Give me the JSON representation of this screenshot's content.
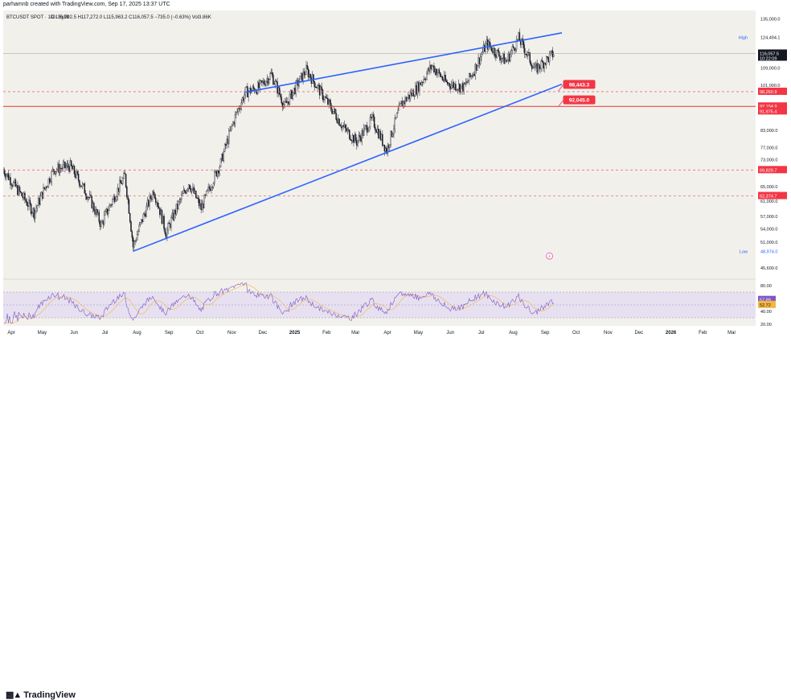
{
  "credit": "parhamnb created with TradingView.com, Sep 17, 2025 13:37 UTC",
  "brand": "TradingView",
  "legend": {
    "symbol": "BTCUSDT SPOT · 1D · Bybit",
    "ohlc": "O116,792.5 H117,272.0 L115,963.2 C116,057.5 −735.0 (−0.63%) Vol3.86K"
  },
  "colors": {
    "background": "#f2f0eb",
    "wedge_line": "#2962ff",
    "support_line": "#e53935",
    "dashed_line": "#e57373",
    "label_red": "#f23645",
    "rsi_band": "#e6e0f0",
    "rsi_line": "#7e57c2",
    "rsi_ma": "#f5b642",
    "candle": "#131722"
  },
  "chart_data": [
    {
      "type": "candlestick",
      "scale": "log",
      "ylim": [
        44000,
        140000
      ],
      "x_tick_labels": [
        "Apr",
        "May",
        "Jun",
        "Jul",
        "Aug",
        "Sep",
        "Oct",
        "Nov",
        "Dec",
        "2025",
        "Feb",
        "Mar",
        "Apr",
        "May",
        "Jun",
        "Jul",
        "Aug",
        "Sep",
        "Oct",
        "Nov",
        "Dec",
        "2026",
        "Feb",
        "Mar"
      ],
      "y_tick_labels": [
        "135,000.0",
        "109,000.0",
        "101,000.0",
        "83,000.0",
        "77,000.0",
        "73,000.0",
        "65,000.0",
        "61,000.0",
        "57,000.0",
        "54,000.0",
        "51,000.0",
        "45,600.0"
      ],
      "price_path": [
        [
          "2024-04-01",
          70000
        ],
        [
          "2024-04-15",
          64000
        ],
        [
          "2024-05-01",
          58000
        ],
        [
          "2024-05-20",
          70000
        ],
        [
          "2024-06-05",
          71000
        ],
        [
          "2024-06-25",
          61000
        ],
        [
          "2024-07-05",
          55000
        ],
        [
          "2024-07-28",
          68000
        ],
        [
          "2024-08-05",
          50000
        ],
        [
          "2024-08-25",
          64000
        ],
        [
          "2024-09-06",
          53000
        ],
        [
          "2024-09-28",
          66000
        ],
        [
          "2024-10-10",
          59000
        ],
        [
          "2024-10-29",
          72000
        ],
        [
          "2024-11-12",
          88000
        ],
        [
          "2024-11-22",
          98000
        ],
        [
          "2024-12-05",
          100000
        ],
        [
          "2024-12-17",
          106000
        ],
        [
          "2024-12-30",
          92000
        ],
        [
          "2025-01-20",
          108000
        ],
        [
          "2025-02-03",
          98000
        ],
        [
          "2025-02-25",
          84000
        ],
        [
          "2025-03-10",
          79000
        ],
        [
          "2025-03-25",
          87000
        ],
        [
          "2025-04-08",
          76000
        ],
        [
          "2025-04-22",
          93000
        ],
        [
          "2025-05-08",
          100000
        ],
        [
          "2025-05-22",
          110000
        ],
        [
          "2025-06-05",
          102000
        ],
        [
          "2025-06-22",
          100000
        ],
        [
          "2025-07-01",
          107000
        ],
        [
          "2025-07-14",
          121000
        ],
        [
          "2025-08-02",
          112000
        ],
        [
          "2025-08-14",
          124000
        ],
        [
          "2025-08-30",
          108000
        ],
        [
          "2025-09-17",
          116057.5
        ]
      ],
      "trendlines": [
        {
          "name": "wedge-upper",
          "from": [
            "2024-11-22",
            98000
          ],
          "to": [
            "2025-09-25",
            127000
          ]
        },
        {
          "name": "wedge-lower",
          "from": [
            "2024-08-05",
            49000
          ],
          "to": [
            "2025-09-25",
            101500
          ]
        }
      ],
      "horizontal_lines": [
        {
          "name": "level-98260",
          "value": 98260.9,
          "style": "dashed",
          "label": "98,260.9"
        },
        {
          "name": "level-92154",
          "value": 92154.9,
          "style": "solid",
          "label": "92,154.9"
        },
        {
          "name": "level-69829",
          "value": 69829.7,
          "style": "dashed",
          "label": "69,829.7"
        },
        {
          "name": "level-62374",
          "value": 62374.7,
          "style": "dashed",
          "label": "62,374.7"
        }
      ],
      "annotations": [
        {
          "name": "target-98443",
          "value": 98443.3,
          "label": "98,443.3"
        },
        {
          "name": "target-92045",
          "value": 92045.0,
          "label": "92,045.0"
        }
      ],
      "axis_labels": {
        "high_tag": "High",
        "high_value": "124,494.1",
        "low_tag": "Low",
        "low_value": "48,974.0",
        "last_price": "116,057.5",
        "countdown": "10:22:09",
        "support_secondary": "91,975.4"
      }
    },
    {
      "type": "line",
      "name": "RSI",
      "ylim": [
        20,
        85
      ],
      "y_tick_labels": [
        "80.00",
        "40.00",
        "20.00"
      ],
      "band": [
        30,
        70
      ],
      "rsi_value": "57.89",
      "ma_value": "52.72"
    }
  ]
}
